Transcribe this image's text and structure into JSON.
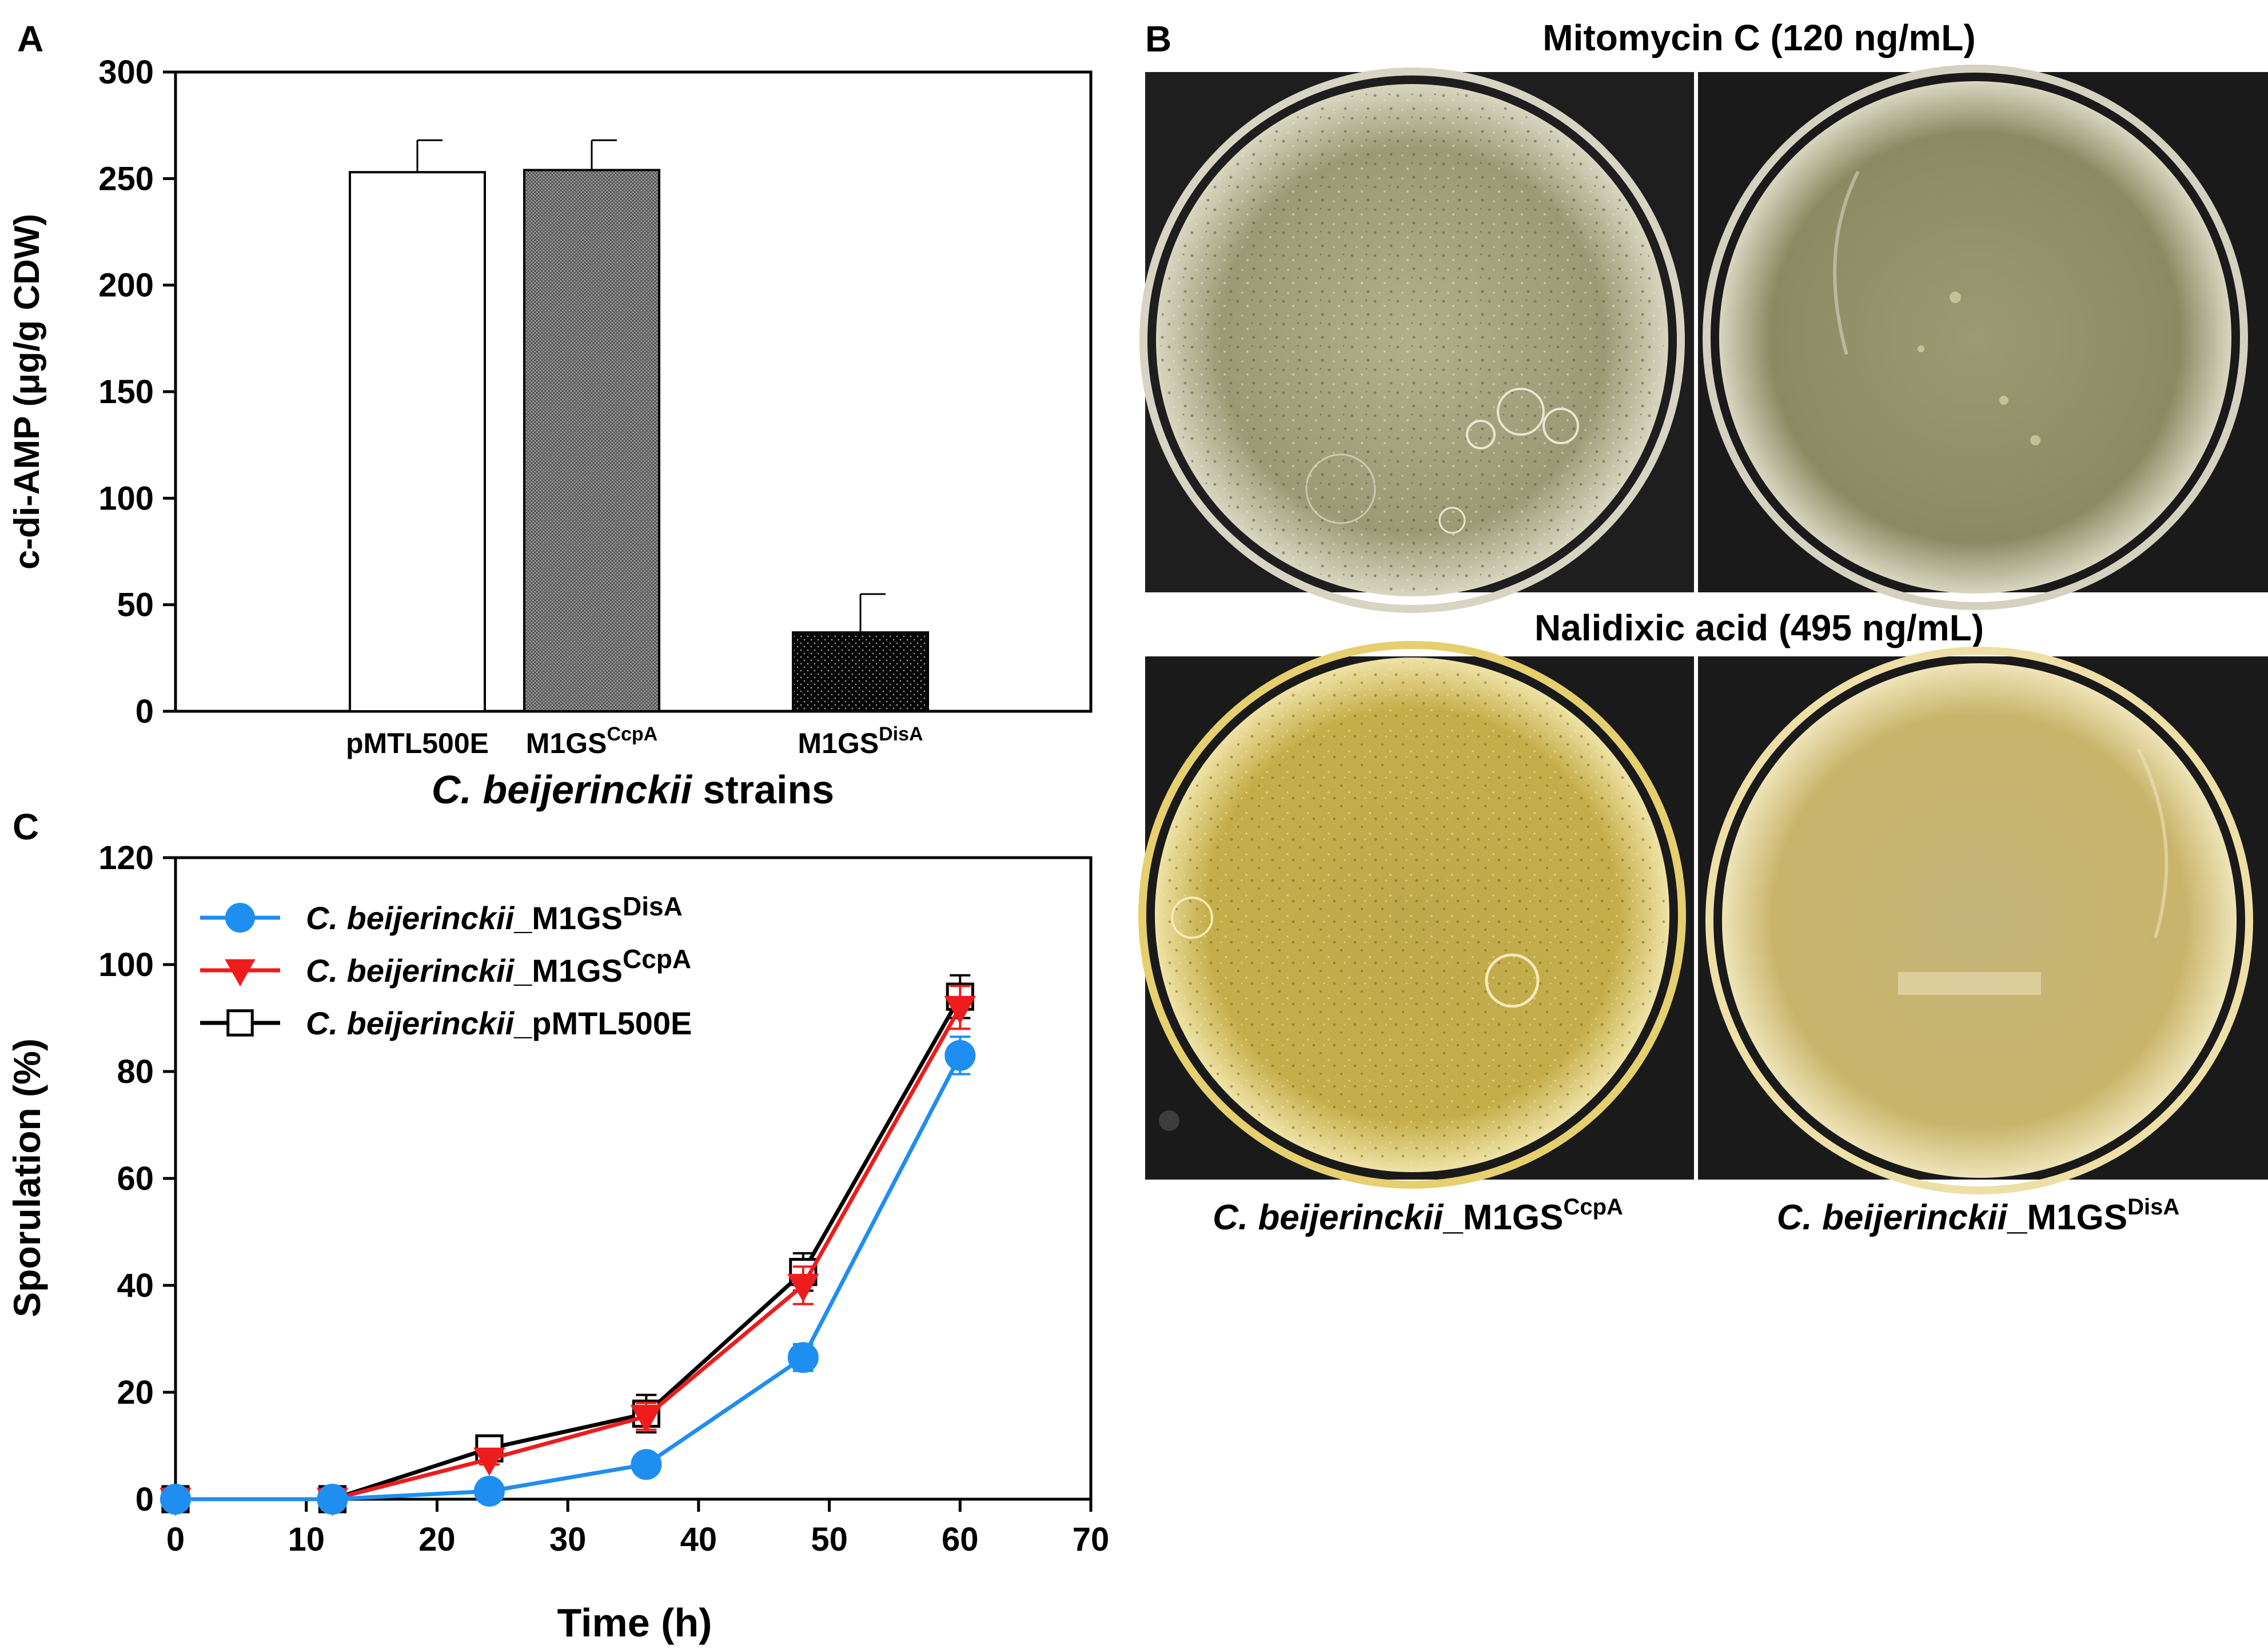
{
  "panels": {
    "a": {
      "letter": "A"
    },
    "b": {
      "letter": "B",
      "title_top": "Mitomycin C (120 ng/mL)",
      "title_bottom": "Nalidixic acid (495 ng/mL)",
      "caption_left": {
        "italic": "C. beijerinckii",
        "plain": "_M1GS",
        "sup": "CcpA"
      },
      "caption_right": {
        "italic": "C. beijerinckii",
        "plain": "_M1GS",
        "sup": "DisA"
      }
    },
    "c": {
      "letter": "C"
    }
  },
  "chart_data": [
    {
      "panel": "A",
      "type": "bar",
      "categories": [
        {
          "base": "pMTL500E",
          "sup": ""
        },
        {
          "base": "M1GS",
          "sup": "CcpA"
        },
        {
          "base": "M1GS",
          "sup": "DisA"
        }
      ],
      "values": [
        253,
        254,
        37
      ],
      "errors": [
        15,
        14,
        18
      ],
      "fills": [
        "white",
        "crosshatch-gray",
        "black-dots"
      ],
      "ylabel": "c-di-AMP (μg/g CDW)",
      "xlabel_italic": "C. beijerinckii",
      "xlabel_plain": " strains",
      "ylim": [
        0,
        300
      ],
      "yticks": [
        0,
        50,
        100,
        150,
        200,
        250,
        300
      ]
    },
    {
      "panel": "C",
      "type": "line",
      "xlabel": "Time (h)",
      "ylabel": "Sporulation (%)",
      "xlim": [
        0,
        70
      ],
      "ylim": [
        0,
        120
      ],
      "xticks": [
        0,
        10,
        20,
        30,
        40,
        50,
        60,
        70
      ],
      "yticks": [
        0,
        20,
        40,
        60,
        80,
        100,
        120
      ],
      "legend_position": "top-left",
      "series": [
        {
          "name_italic": "C. beijerinckii",
          "name_plain": "_M1GS",
          "name_sup": "DisA",
          "marker": "circle",
          "color": "#1f8ef1",
          "x": [
            0,
            12,
            24,
            36,
            48,
            60
          ],
          "y": [
            0,
            0,
            1.5,
            6.5,
            26.5,
            83
          ],
          "err": [
            0,
            0,
            0.5,
            1.5,
            2.5,
            3.5
          ]
        },
        {
          "name_italic": "C. beijerinckii",
          "name_plain": "_M1GS",
          "name_sup": "CcpA",
          "marker": "triangle-down",
          "color": "#ee1c1c",
          "x": [
            0,
            12,
            24,
            36,
            48,
            60
          ],
          "y": [
            0,
            0,
            7.5,
            15.5,
            40,
            92
          ],
          "err": [
            0,
            0,
            1,
            2.5,
            3.5,
            4
          ]
        },
        {
          "name_italic": "C. beijerinckii",
          "name_plain": "_pMTL500E",
          "name_sup": "",
          "marker": "open-square",
          "color": "#000000",
          "x": [
            0,
            12,
            24,
            36,
            48,
            60
          ],
          "y": [
            0,
            0,
            9.5,
            16,
            42.5,
            94
          ],
          "err": [
            0,
            0,
            0.5,
            3.5,
            3.5,
            4
          ]
        }
      ]
    }
  ],
  "colors": {
    "dish_dark_bg": "#1c1c1c",
    "agar_pale": "#a9a982",
    "agar_yellow": "#c9b24e"
  }
}
